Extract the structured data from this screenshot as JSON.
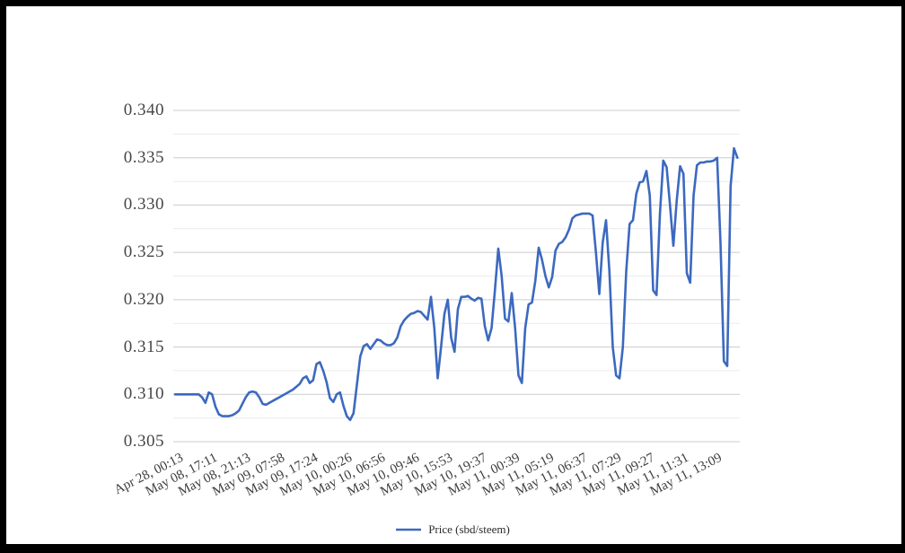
{
  "legend": {
    "label": "Price (sbd/steem)"
  },
  "colors": {
    "line": "#3c69c0",
    "grid_major": "#cccccc",
    "grid_minor": "#ebebeb",
    "y_label": "#464646",
    "x_label": "#3d3d3d",
    "background": "#ffffff",
    "frame": "#000000"
  },
  "chart_data": {
    "type": "line",
    "title": "",
    "series_name": "Price (sbd/steem)",
    "legend_position": "bottom",
    "grid": true,
    "ylim": [
      0.305,
      0.34
    ],
    "y_major_step": 0.005,
    "y_minor_step": 0.0025,
    "y_tick_labels": [
      "0.305",
      "0.310",
      "0.315",
      "0.320",
      "0.325",
      "0.330",
      "0.335",
      "0.340"
    ],
    "tick_every": 10,
    "x_tick_labels": [
      "Apr 28, 00:13",
      "May 08, 17:11",
      "May 08, 21:13",
      "May 09, 07:58",
      "May 09, 17:24",
      "May 10, 00:26",
      "May 10, 06:56",
      "May 10, 09:46",
      "May 10, 15:53",
      "May 10, 19:37",
      "May 11, 00:39",
      "May 11, 05:19",
      "May 11, 06:37",
      "May 11, 07:29",
      "May 11, 09:27",
      "May 11, 11:31",
      "May 11, 13:09"
    ],
    "values": [
      0.31,
      0.31,
      0.31,
      0.31,
      0.31,
      0.31,
      0.31,
      0.31,
      0.3097,
      0.3091,
      0.3102,
      0.31,
      0.3087,
      0.3079,
      0.3077,
      0.3077,
      0.3077,
      0.3078,
      0.308,
      0.3083,
      0.309,
      0.3097,
      0.3102,
      0.3103,
      0.3102,
      0.3097,
      0.309,
      0.3089,
      0.3091,
      0.3093,
      0.3095,
      0.3097,
      0.3099,
      0.3101,
      0.3103,
      0.3105,
      0.3108,
      0.3111,
      0.3117,
      0.3119,
      0.3112,
      0.3115,
      0.3132,
      0.3134,
      0.3125,
      0.3113,
      0.3096,
      0.3092,
      0.31,
      0.3102,
      0.3088,
      0.3077,
      0.3073,
      0.308,
      0.311,
      0.314,
      0.3151,
      0.3153,
      0.3148,
      0.3153,
      0.3158,
      0.3157,
      0.3154,
      0.3152,
      0.3152,
      0.3154,
      0.316,
      0.3172,
      0.3178,
      0.3182,
      0.3185,
      0.3186,
      0.3188,
      0.3187,
      0.3183,
      0.3179,
      0.3203,
      0.317,
      0.3117,
      0.315,
      0.3185,
      0.32,
      0.316,
      0.3145,
      0.319,
      0.3203,
      0.3203,
      0.3204,
      0.3201,
      0.3199,
      0.3202,
      0.3201,
      0.3172,
      0.3157,
      0.317,
      0.321,
      0.3254,
      0.3225,
      0.318,
      0.3177,
      0.3207,
      0.317,
      0.312,
      0.3112,
      0.317,
      0.3195,
      0.3197,
      0.322,
      0.3255,
      0.3242,
      0.3225,
      0.3213,
      0.3224,
      0.3252,
      0.3259,
      0.3261,
      0.3266,
      0.3274,
      0.3286,
      0.3289,
      0.329,
      0.3291,
      0.3291,
      0.3291,
      0.3289,
      0.325,
      0.3206,
      0.326,
      0.3284,
      0.323,
      0.315,
      0.312,
      0.3117,
      0.315,
      0.323,
      0.328,
      0.3284,
      0.3312,
      0.3324,
      0.3325,
      0.3336,
      0.331,
      0.321,
      0.3205,
      0.329,
      0.3347,
      0.334,
      0.33,
      0.3257,
      0.3305,
      0.3341,
      0.3333,
      0.3228,
      0.3218,
      0.331,
      0.3342,
      0.3345,
      0.3345,
      0.3346,
      0.3346,
      0.3347,
      0.335,
      0.326,
      0.3135,
      0.313,
      0.332,
      0.336,
      0.335
    ]
  }
}
